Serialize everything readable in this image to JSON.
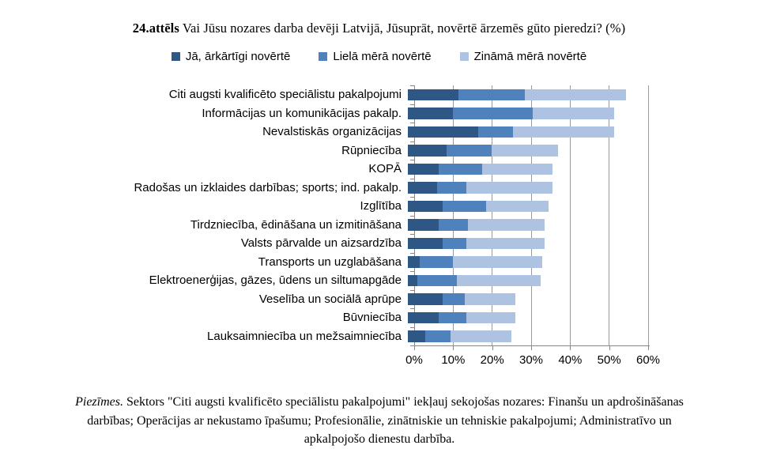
{
  "title": {
    "bold": "24.attēls",
    "rest": " Vai Jūsu nozares darba devēji Latvijā, Jūsuprāt, novērtē ārzemēs gūto pieredzi? (%)"
  },
  "footnote": {
    "italic": "Piezīmes.",
    "rest": " Sektors \"Citi augsti kvalificēto speciālistu pakalpojumi\" iekļauj sekojošas nozares: Finanšu un apdrošināšanas darbības; Operācijas ar nekustamo īpašumu; Profesionālie, zinātniskie un tehniskie pakalpojumi; Administratīvo un apkalpojošo dienestu darbība."
  },
  "chart_data": {
    "type": "bar",
    "orientation": "horizontal_stacked",
    "title": "24.attēls Vai Jūsu nozares darba devēji Latvijā, Jūsuprāt, novērtē ārzemēs gūto pieredzi? (%)",
    "categories": [
      "Citi augsti kvalificēto speciālistu pakalpojumi",
      "Informācijas un komunikācijas pakalp.",
      "Nevalstiskās organizācijas",
      "Rūpniecība",
      "KOPĀ",
      "Radošas un izklaides darbības; sports; ind. pakalp.",
      "Izglītība",
      "Tirdzniecība, ēdināšana un izmitināšana",
      "Valsts pārvalde un aizsardzība",
      "Transports un uzglabāšana",
      "Elektroenerģijas, gāzes, ūdens un siltumapgāde",
      "Veselība un sociālā aprūpe",
      "Būvniecība",
      "Lauksaimniecība un mežsaimniecība"
    ],
    "series": [
      {
        "name": "Jā, ārkārtīgi novērtē",
        "color": "#2E5785",
        "values": [
          13,
          11.5,
          18,
          10,
          8,
          7.5,
          9,
          8,
          9,
          3,
          2.5,
          9,
          8,
          4.5
        ]
      },
      {
        "name": "Lielā mērā novērtē",
        "color": "#4F81BD",
        "values": [
          17,
          20.5,
          9,
          11.5,
          11,
          7.5,
          11,
          7.5,
          6,
          8.5,
          10,
          5.5,
          7,
          6.5
        ]
      },
      {
        "name": "Zināmā mērā novērtē",
        "color": "#AEC3E1",
        "values": [
          26,
          21,
          26,
          17,
          18,
          22,
          16,
          19.5,
          20,
          23,
          21.5,
          13,
          12.5,
          15.5
        ]
      }
    ],
    "xlim": [
      0,
      60
    ],
    "x_ticks": [
      "0%",
      "10%",
      "20%",
      "30%",
      "40%",
      "50%",
      "60%"
    ],
    "grid": "vertical",
    "legend_position": "top",
    "axis_color": "#888888",
    "gridline_color": "#9a9a9a"
  }
}
